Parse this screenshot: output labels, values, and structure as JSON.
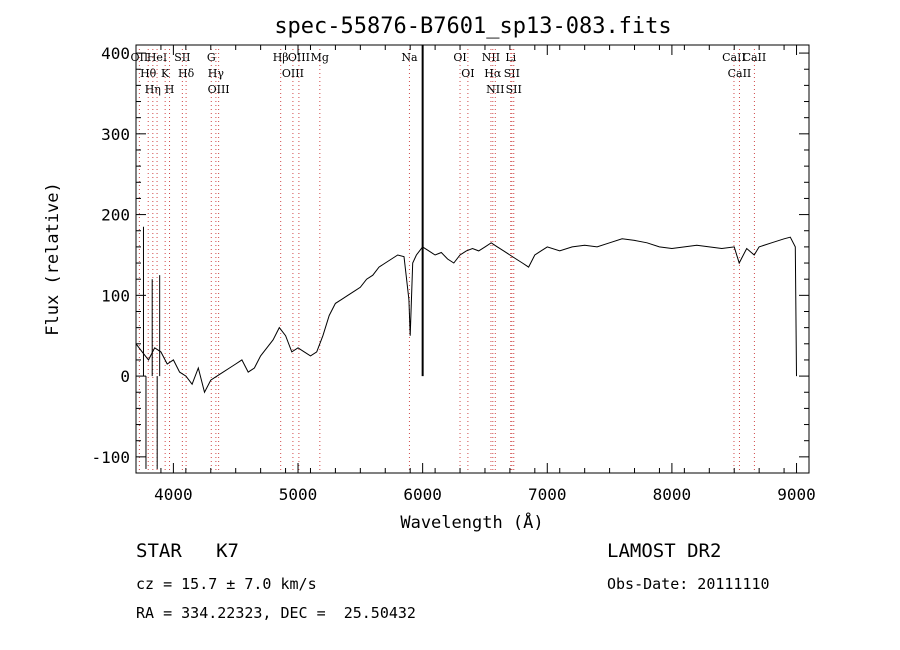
{
  "chart_data": {
    "type": "line",
    "title": "spec-55876-B7601_sp13-083.fits",
    "xlabel": "Wavelength (Å)",
    "ylabel": "Flux (relative)",
    "xlim": [
      3700,
      9100
    ],
    "ylim": [
      -120,
      410
    ],
    "xticks": [
      4000,
      5000,
      6000,
      7000,
      8000,
      9000
    ],
    "yticks": [
      -100,
      0,
      100,
      200,
      300,
      400
    ],
    "grid": false,
    "series": [
      {
        "x": [
          3700,
          3750,
          3800,
          3850,
          3900,
          3950,
          4000,
          4050,
          4100,
          4150,
          4200,
          4250,
          4300,
          4350,
          4400,
          4450,
          4500,
          4550,
          4600,
          4650,
          4700,
          4750,
          4800,
          4850,
          4900,
          4950,
          5000,
          5050,
          5100,
          5150,
          5200,
          5250,
          5300,
          5350,
          5400,
          5450,
          5500,
          5550,
          5600,
          5650,
          5700,
          5750,
          5800,
          5850,
          5890,
          5900,
          5920,
          5950,
          6000,
          6050,
          6100,
          6150,
          6200,
          6250,
          6300,
          6350,
          6400,
          6450,
          6500,
          6550,
          6600,
          6650,
          6700,
          6750,
          6800,
          6850,
          6900,
          6950,
          7000,
          7100,
          7200,
          7300,
          7400,
          7500,
          7600,
          7700,
          7800,
          7900,
          8000,
          8100,
          8200,
          8300,
          8400,
          8500,
          8540,
          8600,
          8660,
          8700,
          8800,
          8900,
          8950,
          8990,
          9000
        ],
        "y": [
          40,
          30,
          20,
          35,
          30,
          15,
          20,
          5,
          0,
          -10,
          10,
          -20,
          -5,
          0,
          5,
          10,
          15,
          20,
          5,
          10,
          25,
          35,
          45,
          60,
          50,
          30,
          35,
          30,
          25,
          30,
          50,
          75,
          90,
          95,
          100,
          105,
          110,
          120,
          125,
          135,
          140,
          145,
          150,
          148,
          95,
          50,
          140,
          150,
          160,
          155,
          150,
          153,
          145,
          140,
          150,
          155,
          158,
          155,
          160,
          165,
          160,
          155,
          150,
          145,
          140,
          135,
          150,
          155,
          160,
          155,
          160,
          162,
          160,
          165,
          170,
          168,
          165,
          160,
          158,
          160,
          162,
          160,
          158,
          160,
          140,
          158,
          150,
          160,
          165,
          170,
          172,
          160,
          0
        ]
      }
    ],
    "spikes": [
      {
        "x": 3760,
        "y": 185
      },
      {
        "x": 3780,
        "y": -115
      },
      {
        "x": 3830,
        "y": 120
      },
      {
        "x": 3870,
        "y": -115
      },
      {
        "x": 3890,
        "y": 125
      },
      {
        "x": 6000,
        "y": 410
      }
    ],
    "emission_lines": [
      {
        "x": 3727,
        "label": "OII"
      },
      {
        "x": 3798,
        "label": "Hθ"
      },
      {
        "x": 3835,
        "label": "Hη"
      },
      {
        "x": 3869,
        "label": "HeI"
      },
      {
        "x": 3934,
        "label": "K"
      },
      {
        "x": 3969,
        "label": "H"
      },
      {
        "x": 4072,
        "label": "SII"
      },
      {
        "x": 4102,
        "label": "Hδ"
      },
      {
        "x": 4304,
        "label": "G"
      },
      {
        "x": 4341,
        "label": "Hγ"
      },
      {
        "x": 4363,
        "label": "OIII"
      },
      {
        "x": 4861,
        "label": "Hβ"
      },
      {
        "x": 4959,
        "label": "OIII"
      },
      {
        "x": 5007,
        "label": "OIII"
      },
      {
        "x": 5175,
        "label": "Mg"
      },
      {
        "x": 5894,
        "label": "Na"
      },
      {
        "x": 6300,
        "label": "OI"
      },
      {
        "x": 6363,
        "label": "OI"
      },
      {
        "x": 6548,
        "label": "NII"
      },
      {
        "x": 6563,
        "label": "Hα"
      },
      {
        "x": 6583,
        "label": "NII"
      },
      {
        "x": 6707,
        "label": "Li"
      },
      {
        "x": 6716,
        "label": "SII"
      },
      {
        "x": 6731,
        "label": "SII"
      },
      {
        "x": 8498,
        "label": "CaII"
      },
      {
        "x": 8542,
        "label": "CaII"
      },
      {
        "x": 8662,
        "label": "CaII"
      }
    ]
  },
  "info": {
    "class_line": "STAR   K7",
    "survey": "LAMOST DR2",
    "cz_line": "cz = 15.7 ± 7.0 km/s",
    "obs_date": "Obs-Date: 20111110",
    "radec": "RA = 334.22323, DEC =  25.50432"
  }
}
